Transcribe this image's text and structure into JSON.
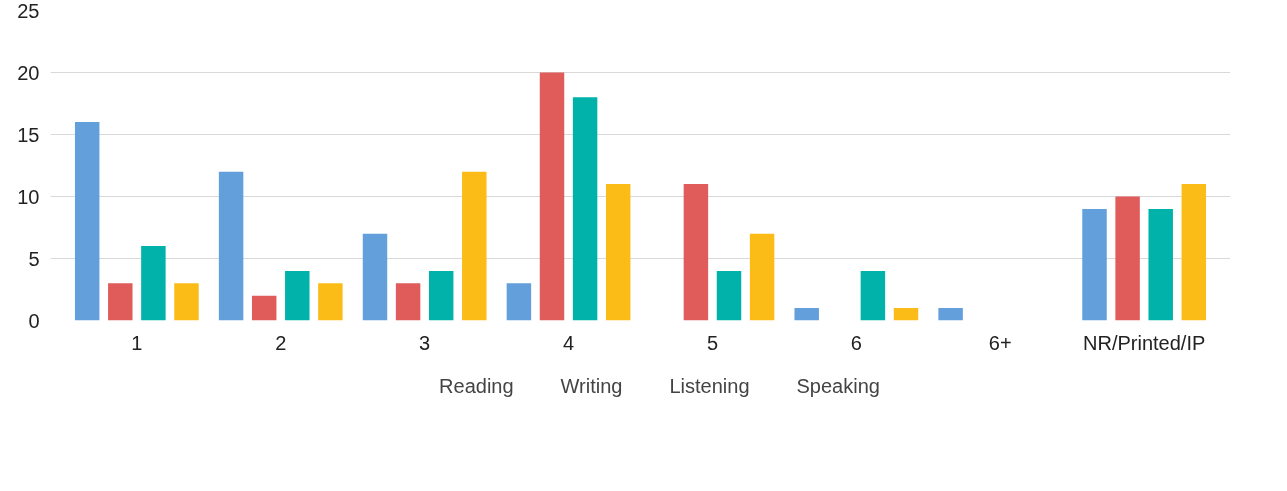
{
  "chart_data": {
    "type": "bar",
    "categories": [
      "1",
      "2",
      "3",
      "4",
      "5",
      "6",
      "6+",
      "NR/Printed/IP"
    ],
    "series": [
      {
        "name": "Reading",
        "color": "#629fdb",
        "values": [
          16,
          12,
          7,
          3,
          0,
          1,
          1,
          9
        ]
      },
      {
        "name": "Writing",
        "color": "#e05c5a",
        "values": [
          3,
          2,
          3,
          20,
          11,
          0,
          0,
          10
        ]
      },
      {
        "name": "Listening",
        "color": "#00b2a9",
        "values": [
          6,
          4,
          4,
          18,
          4,
          4,
          0,
          9
        ]
      },
      {
        "name": "Speaking",
        "color": "#fbbc18",
        "values": [
          3,
          3,
          12,
          11,
          7,
          1,
          0,
          11
        ]
      }
    ],
    "ylim": [
      0,
      25
    ],
    "yticks": [
      0,
      5,
      10,
      15,
      20,
      25
    ],
    "grid": "y",
    "legend": "bottom"
  }
}
